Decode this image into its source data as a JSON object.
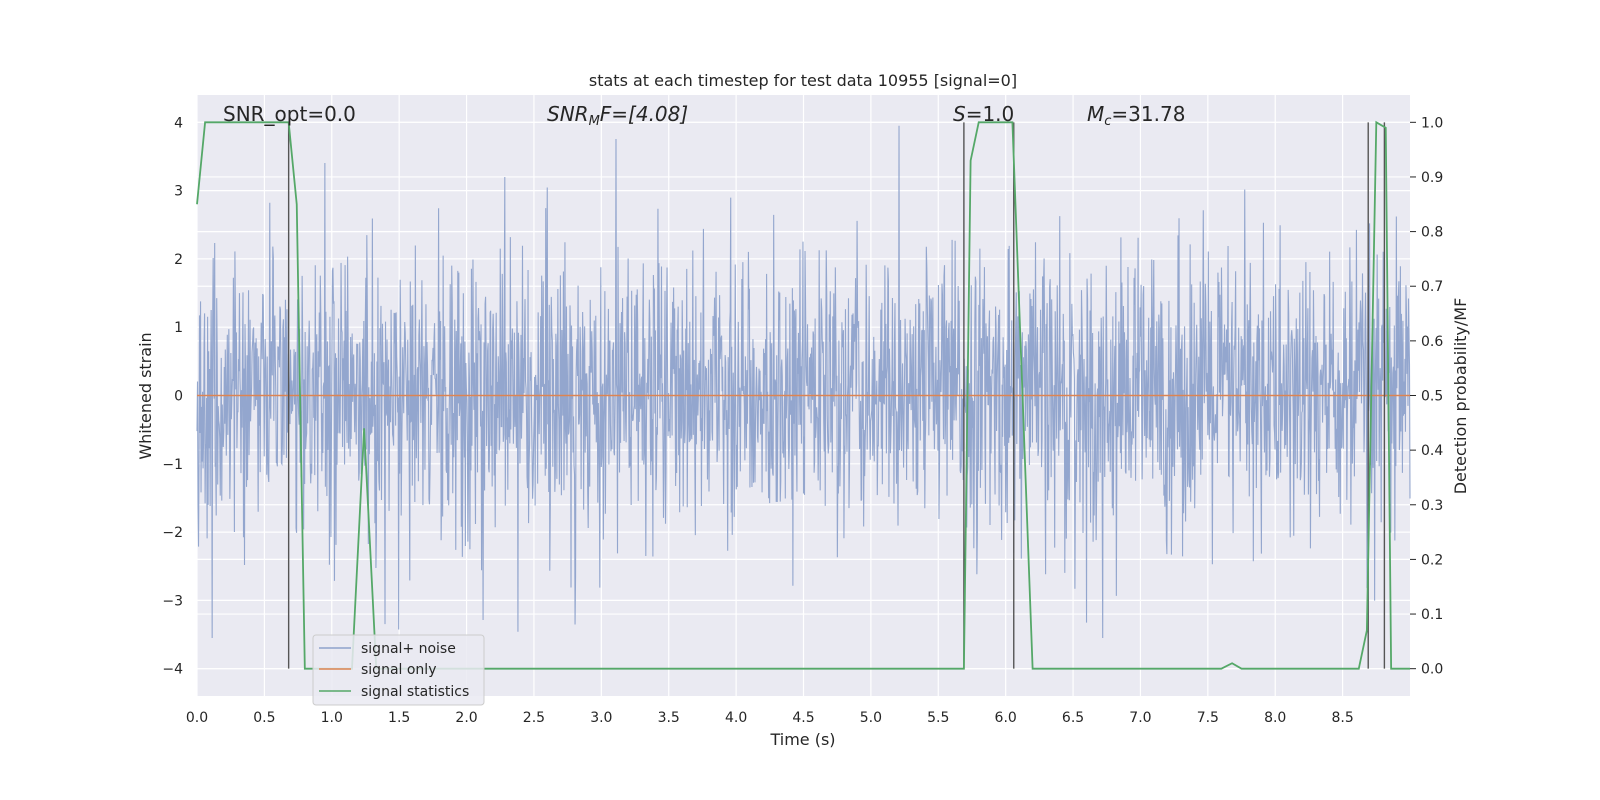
{
  "chart_data": {
    "type": "line",
    "title": "stats at each timestep for test data 10955 [signal=0]",
    "xlabel": "Time (s)",
    "ylabel": "Whitened strain",
    "ylabel_right": "Detection probability/MF",
    "xlim": [
      0.0,
      9.0
    ],
    "ylim": [
      -4.4,
      4.4
    ],
    "ylim_right": [
      -0.05,
      1.05
    ],
    "x_ticks": [
      "0.0",
      "0.5",
      "1.0",
      "1.5",
      "2.0",
      "2.5",
      "3.0",
      "3.5",
      "4.0",
      "4.5",
      "5.0",
      "5.5",
      "6.0",
      "6.5",
      "7.0",
      "7.5",
      "8.0",
      "8.5"
    ],
    "y_ticks": [
      "4",
      "3",
      "2",
      "1",
      "0",
      "−1",
      "−2",
      "−3",
      "−4"
    ],
    "y_right_ticks": [
      "1.0",
      "0.9",
      "0.8",
      "0.7",
      "0.6",
      "0.5",
      "0.4",
      "0.3",
      "0.2",
      "0.1",
      "0.0"
    ],
    "grid": true,
    "legend_position": "lower-left",
    "annotations": {
      "snr_opt": "SNR_opt=0.0",
      "snr_mf_main": "SNR",
      "snr_mf_sub": "M",
      "snr_mf_rest": "F=[4.08]",
      "s_main": "S",
      "s_rest": "=1.0",
      "mc_main": "M",
      "mc_sub": "c",
      "mc_rest": "=31.78"
    },
    "series": [
      {
        "name": "signal+ noise",
        "color": "#8ea2cb",
        "description_values": "whitened strain noise, roughly within [-3.5, 4.0]"
      },
      {
        "name": "signal only",
        "color": "#dd8452",
        "x": [
          0.0,
          9.0
        ],
        "y": [
          0.0,
          0.0
        ]
      },
      {
        "name": "signal statistics",
        "color": "#55a868",
        "axis": "right",
        "x": [
          0.0,
          0.06,
          0.12,
          0.5,
          0.62,
          0.68,
          0.74,
          0.8,
          1.15,
          1.24,
          1.33,
          5.69,
          5.74,
          5.8,
          5.85,
          6.05,
          6.2,
          7.6,
          7.68,
          7.75,
          8.62,
          8.68,
          8.75,
          8.82,
          8.86,
          8.92,
          9.0
        ],
        "y": [
          0.85,
          1.0,
          1.0,
          1.0,
          1.0,
          1.0,
          0.85,
          0.0,
          0.0,
          0.44,
          0.0,
          0.0,
          0.93,
          1.0,
          1.0,
          1.0,
          0.0,
          0.0,
          0.01,
          0.0,
          0.0,
          0.07,
          1.0,
          0.99,
          0.0,
          0.0,
          0.0
        ]
      }
    ],
    "vertical_lines": [
      0.68,
      5.69,
      6.06,
      8.69,
      8.81
    ]
  }
}
